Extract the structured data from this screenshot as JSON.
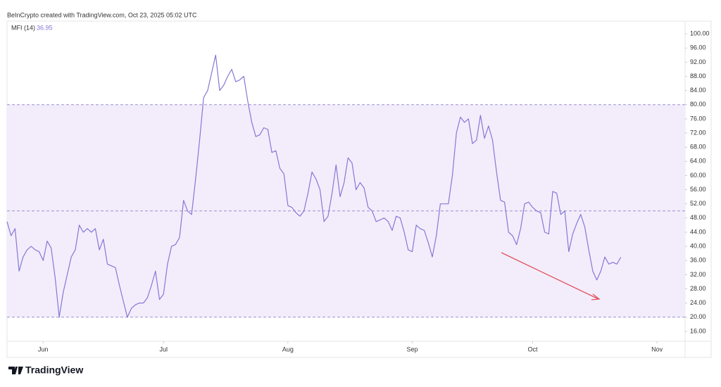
{
  "chart_data": {
    "type": "line",
    "title": "BeInCrypto created with TradingView.com, Oct 23, 2025 05:02 UTC",
    "brand": "TradingView",
    "series": [
      {
        "name": "MFI (14)",
        "color": "#8478d6",
        "values": [
          47,
          43,
          45,
          33,
          37,
          39,
          40,
          39,
          38.5,
          36,
          41.5,
          39.5,
          31,
          20,
          27,
          32,
          37,
          39,
          46,
          44,
          45,
          44,
          45,
          39,
          42,
          35,
          34.5,
          34,
          29,
          24.5,
          20,
          22.5,
          23.5,
          24,
          24,
          25.5,
          29,
          33,
          25,
          26.5,
          35,
          40,
          40.5,
          42.5,
          53,
          50,
          49,
          59,
          70,
          82,
          84,
          89,
          94,
          84,
          85.5,
          88,
          90,
          86.5,
          87,
          88,
          81,
          75,
          71,
          71.5,
          73.5,
          73,
          66.5,
          67,
          62,
          60.5,
          51.5,
          51,
          49.5,
          48.5,
          50,
          55,
          61,
          59,
          56,
          47,
          48.5,
          55,
          63,
          54,
          58,
          65,
          63.5,
          56,
          58,
          56.5,
          51,
          50,
          47,
          47.5,
          48,
          47,
          44.5,
          48.5,
          48,
          44,
          39,
          38.5,
          46,
          45,
          44.5,
          41,
          37,
          43,
          52,
          52,
          52,
          60,
          72,
          76.5,
          75,
          76,
          69,
          70,
          77,
          70.5,
          74,
          70,
          61,
          53,
          52.5,
          44,
          43,
          40.5,
          45,
          52,
          52.5,
          51,
          50,
          49.5,
          44,
          43.5,
          55.5,
          55,
          49,
          50,
          38.5,
          43.5,
          46.5,
          49,
          45.5,
          39,
          33,
          30.5,
          33,
          37,
          35,
          35.5,
          35,
          36.95
        ]
      }
    ],
    "xlim": [
      0,
      169
    ],
    "xticks": [
      {
        "value": 9,
        "label": "Jun"
      },
      {
        "value": 39,
        "label": "Jul"
      },
      {
        "value": 70,
        "label": "Aug"
      },
      {
        "value": 101,
        "label": "Sep"
      },
      {
        "value": 131,
        "label": "Oct"
      },
      {
        "value": 162,
        "label": "Nov"
      }
    ],
    "ylim": [
      13.2,
      103.6
    ],
    "yticks": [
      {
        "value": 16,
        "label": "16.00"
      },
      {
        "value": 20,
        "label": "20.00"
      },
      {
        "value": 24,
        "label": "24.00"
      },
      {
        "value": 28,
        "label": "28.00"
      },
      {
        "value": 32,
        "label": "32.00"
      },
      {
        "value": 36,
        "label": "36.00"
      },
      {
        "value": 40,
        "label": "40.00"
      },
      {
        "value": 44,
        "label": "44.00"
      },
      {
        "value": 48,
        "label": "48.00"
      },
      {
        "value": 52,
        "label": "52.00"
      },
      {
        "value": 56,
        "label": "56.00"
      },
      {
        "value": 60,
        "label": "60.00"
      },
      {
        "value": 64,
        "label": "64.00"
      },
      {
        "value": 68,
        "label": "68.00"
      },
      {
        "value": 72,
        "label": "72.00"
      },
      {
        "value": 76,
        "label": "76.00"
      },
      {
        "value": 80,
        "label": "80.00"
      },
      {
        "value": 84,
        "label": "84.00"
      },
      {
        "value": 88,
        "label": "88.00"
      },
      {
        "value": 92,
        "label": "92.00"
      },
      {
        "value": 96,
        "label": "96.00"
      },
      {
        "value": 100,
        "label": "100.00"
      }
    ],
    "band": [
      20,
      80
    ],
    "band_color": "#f3edfb",
    "levels": [
      20,
      50,
      80
    ]
  }
}
